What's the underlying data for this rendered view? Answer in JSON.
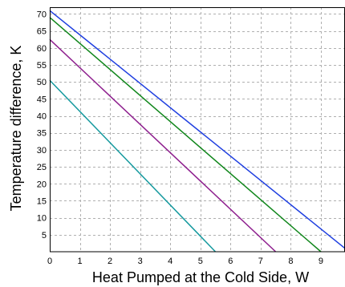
{
  "chart_data": {
    "type": "line",
    "title": "",
    "xlabel": "Heat Pumped at the Cold Side, W",
    "ylabel": "Temperature difference, K",
    "xlim": [
      0,
      9.8
    ],
    "ylim": [
      0,
      72
    ],
    "x_ticks": [
      0,
      1,
      2,
      3,
      4,
      5,
      6,
      7,
      8,
      9
    ],
    "y_ticks": [
      5,
      10,
      15,
      20,
      25,
      30,
      35,
      40,
      45,
      50,
      55,
      60,
      65,
      70
    ],
    "grid": true,
    "legend": "none",
    "series": [
      {
        "color": "#1f3fe0",
        "points": [
          [
            0,
            71
          ],
          [
            9.8,
            1
          ]
        ]
      },
      {
        "color": "#10861b",
        "points": [
          [
            0,
            69
          ],
          [
            9.0,
            0
          ]
        ]
      },
      {
        "color": "#8e1f8e",
        "points": [
          [
            0,
            62.5
          ],
          [
            7.5,
            0
          ]
        ]
      },
      {
        "color": "#14999e",
        "points": [
          [
            0,
            50.5
          ],
          [
            5.5,
            0
          ]
        ]
      }
    ]
  }
}
